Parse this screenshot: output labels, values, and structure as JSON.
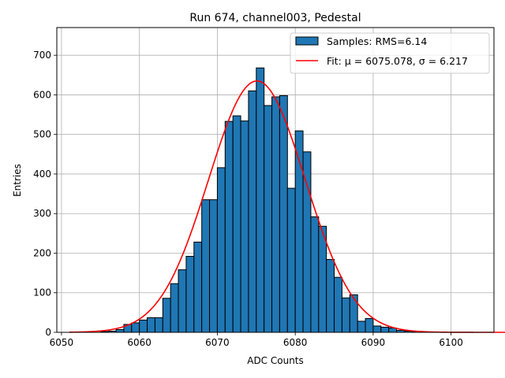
{
  "chart_data": {
    "type": "bar",
    "title": "Run 674, channel003, Pedestal",
    "xlabel": "ADC Counts",
    "ylabel": "Entries",
    "xlim": [
      6049.4,
      6105.5
    ],
    "ylim": [
      0,
      770
    ],
    "xticks": [
      6050,
      6060,
      6070,
      6080,
      6090,
      6100
    ],
    "yticks": [
      0,
      100,
      200,
      300,
      400,
      500,
      600,
      700
    ],
    "xtick_labels": [
      "6050",
      "6060",
      "6070",
      "6080",
      "6090",
      "6100"
    ],
    "ytick_labels": [
      "0",
      "100",
      "200",
      "300",
      "400",
      "500",
      "600",
      "700"
    ],
    "grid": true,
    "legend_position": "top-right",
    "bin_width": 1,
    "bin_edges_start": 6051,
    "series": [
      {
        "name": "Samples: RMS=6.14",
        "kind": "histogram",
        "color": "#1f77b4",
        "edgecolor": "#000000",
        "values": [
          0,
          0,
          0,
          0,
          2,
          3,
          7,
          20,
          24,
          31,
          37,
          37,
          86,
          123,
          158,
          192,
          228,
          335,
          335,
          416,
          533,
          547,
          534,
          610,
          668,
          573,
          595,
          598,
          364,
          509,
          456,
          292,
          268,
          184,
          139,
          87,
          95,
          28,
          35,
          16,
          13,
          11,
          5,
          3,
          2,
          0,
          0,
          0,
          0,
          0,
          0,
          0
        ]
      },
      {
        "name": "Fit: μ = 6075.078, σ = 6.217",
        "kind": "gaussian",
        "color": "#ff0000",
        "mu": 6075.078,
        "sigma": 6.217,
        "amplitude": 635,
        "x_range": [
          6051,
          6108
        ]
      }
    ]
  }
}
